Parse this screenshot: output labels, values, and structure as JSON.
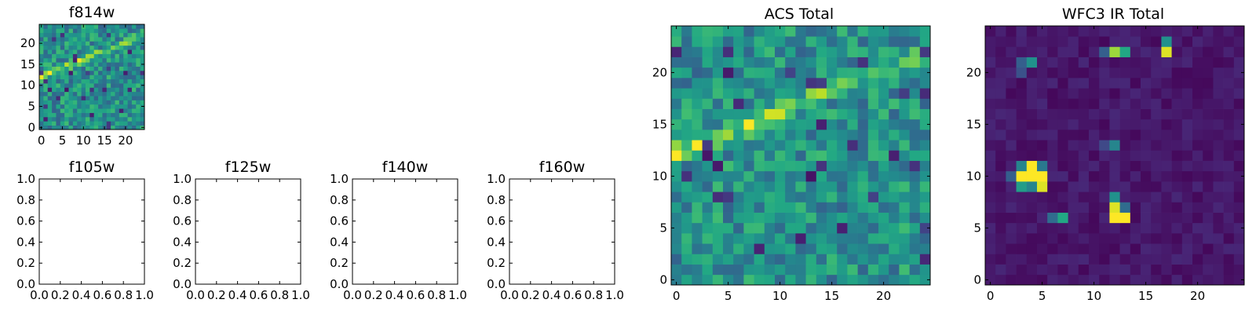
{
  "colors": {
    "axis": "#000000",
    "background": "#ffffff"
  },
  "chart_data": [
    {
      "type": "heatmap",
      "title": "f814w",
      "colormap": "viridis",
      "grid_size": 25,
      "xlim": [
        -0.5,
        24.5
      ],
      "ylim": [
        -0.5,
        24.5
      ],
      "xticks": [
        0,
        5,
        10,
        15,
        20
      ],
      "yticks": [
        0,
        5,
        10,
        15,
        20
      ],
      "xtick_labels": [
        "0",
        "5",
        "10",
        "15",
        "20"
      ],
      "ytick_labels": [
        "0",
        "5",
        "10",
        "15",
        "20"
      ],
      "pattern": "streak"
    },
    {
      "type": "heatmap",
      "title": "f105w",
      "empty": true,
      "xlim": [
        0,
        1
      ],
      "ylim": [
        0,
        1
      ],
      "xticks": [
        0,
        0.2,
        0.4,
        0.6,
        0.8,
        1.0
      ],
      "yticks": [
        0,
        0.2,
        0.4,
        0.6,
        0.8,
        1.0
      ],
      "xtick_labels": [
        "0.0",
        "0.2",
        "0.4",
        "0.6",
        "0.8",
        "1.0"
      ],
      "ytick_labels": [
        "0.0",
        "0.2",
        "0.4",
        "0.6",
        "0.8",
        "1.0"
      ]
    },
    {
      "type": "heatmap",
      "title": "f125w",
      "empty": true,
      "xlim": [
        0,
        1
      ],
      "ylim": [
        0,
        1
      ],
      "xticks": [
        0,
        0.2,
        0.4,
        0.6,
        0.8,
        1.0
      ],
      "yticks": [
        0,
        0.2,
        0.4,
        0.6,
        0.8,
        1.0
      ],
      "xtick_labels": [
        "0.0",
        "0.2",
        "0.4",
        "0.6",
        "0.8",
        "1.0"
      ],
      "ytick_labels": [
        "0.0",
        "0.2",
        "0.4",
        "0.6",
        "0.8",
        "1.0"
      ]
    },
    {
      "type": "heatmap",
      "title": "f140w",
      "empty": true,
      "xlim": [
        0,
        1
      ],
      "ylim": [
        0,
        1
      ],
      "xticks": [
        0,
        0.2,
        0.4,
        0.6,
        0.8,
        1.0
      ],
      "yticks": [
        0,
        0.2,
        0.4,
        0.6,
        0.8,
        1.0
      ],
      "xtick_labels": [
        "0.0",
        "0.2",
        "0.4",
        "0.6",
        "0.8",
        "1.0"
      ],
      "ytick_labels": [
        "0.0",
        "0.2",
        "0.4",
        "0.6",
        "0.8",
        "1.0"
      ]
    },
    {
      "type": "heatmap",
      "title": "f160w",
      "empty": true,
      "xlim": [
        0,
        1
      ],
      "ylim": [
        0,
        1
      ],
      "xticks": [
        0,
        0.2,
        0.4,
        0.6,
        0.8,
        1.0
      ],
      "yticks": [
        0,
        0.2,
        0.4,
        0.6,
        0.8,
        1.0
      ],
      "xtick_labels": [
        "0.0",
        "0.2",
        "0.4",
        "0.6",
        "0.8",
        "1.0"
      ],
      "ytick_labels": [
        "0.0",
        "0.2",
        "0.4",
        "0.6",
        "0.8",
        "1.0"
      ]
    },
    {
      "type": "heatmap",
      "title": "ACS Total",
      "colormap": "viridis",
      "grid_size": 25,
      "xlim": [
        -0.5,
        24.5
      ],
      "ylim": [
        -0.5,
        24.5
      ],
      "xticks": [
        0,
        5,
        10,
        15,
        20
      ],
      "yticks": [
        0,
        5,
        10,
        15,
        20
      ],
      "xtick_labels": [
        "0",
        "5",
        "10",
        "15",
        "20"
      ],
      "ytick_labels": [
        "0",
        "5",
        "10",
        "15",
        "20"
      ],
      "pattern": "streak"
    },
    {
      "type": "heatmap",
      "title": "WFC3 IR Total",
      "colormap": "viridis",
      "grid_size": 25,
      "xlim": [
        -0.5,
        24.5
      ],
      "ylim": [
        -0.5,
        24.5
      ],
      "xticks": [
        0,
        5,
        10,
        15,
        20
      ],
      "yticks": [
        0,
        5,
        10,
        15,
        20
      ],
      "xtick_labels": [
        "0",
        "5",
        "10",
        "15",
        "20"
      ],
      "ytick_labels": [
        "0",
        "5",
        "10",
        "15",
        "20"
      ],
      "pattern": "sources",
      "bright_pixels": [
        {
          "x": 4,
          "y": 11,
          "v": 1.0
        },
        {
          "x": 3,
          "y": 10,
          "v": 1.0
        },
        {
          "x": 4,
          "y": 10,
          "v": 1.0
        },
        {
          "x": 5,
          "y": 10,
          "v": 1.0
        },
        {
          "x": 5,
          "y": 9,
          "v": 0.95
        },
        {
          "x": 3,
          "y": 11,
          "v": 0.45
        },
        {
          "x": 5,
          "y": 11,
          "v": 0.4
        },
        {
          "x": 3,
          "y": 9,
          "v": 0.55
        },
        {
          "x": 4,
          "y": 9,
          "v": 0.45
        },
        {
          "x": 2,
          "y": 10,
          "v": 0.3
        },
        {
          "x": 12,
          "y": 7,
          "v": 0.95
        },
        {
          "x": 12,
          "y": 6,
          "v": 1.0
        },
        {
          "x": 13,
          "y": 6,
          "v": 1.0
        },
        {
          "x": 12,
          "y": 8,
          "v": 0.5
        },
        {
          "x": 13,
          "y": 7,
          "v": 0.35
        },
        {
          "x": 7,
          "y": 6,
          "v": 0.6
        },
        {
          "x": 6,
          "y": 6,
          "v": 0.35
        },
        {
          "x": 12,
          "y": 22,
          "v": 0.85
        },
        {
          "x": 13,
          "y": 22,
          "v": 0.6
        },
        {
          "x": 11,
          "y": 22,
          "v": 0.3
        },
        {
          "x": 17,
          "y": 22,
          "v": 0.95
        },
        {
          "x": 17,
          "y": 23,
          "v": 0.5
        },
        {
          "x": 4,
          "y": 21,
          "v": 0.5
        },
        {
          "x": 3,
          "y": 21,
          "v": 0.3
        },
        {
          "x": 3,
          "y": 20,
          "v": 0.25
        },
        {
          "x": 12,
          "y": 13,
          "v": 0.45
        },
        {
          "x": 11,
          "y": 13,
          "v": 0.22
        }
      ]
    }
  ]
}
